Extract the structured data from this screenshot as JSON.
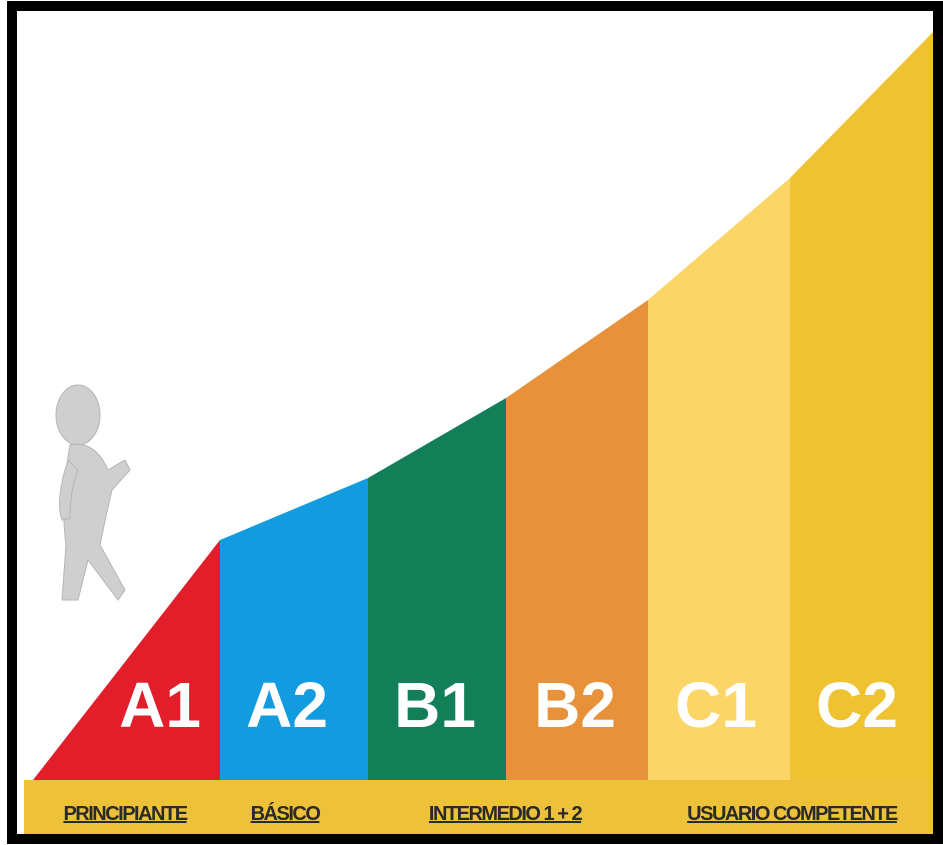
{
  "levels": [
    "A1",
    "A2",
    "B1",
    "B2",
    "C1",
    "C2"
  ],
  "stages": [
    "PRINCIPIANTE",
    "BÁSICO",
    "INTERMEDIO 1 + 2",
    "USUARIO COMPETENTE"
  ]
}
